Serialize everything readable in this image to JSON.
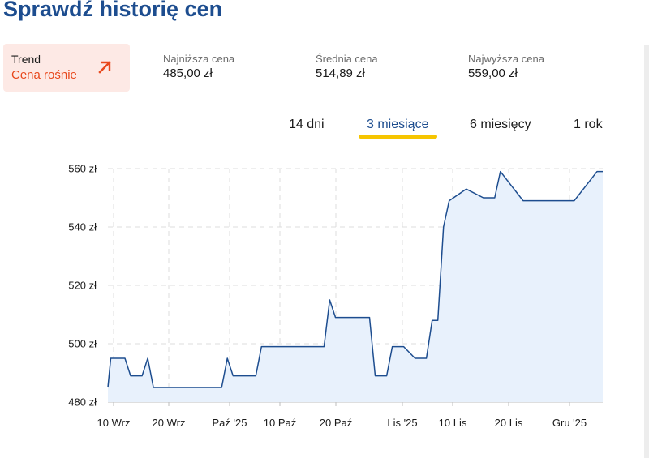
{
  "page": {
    "title": "Sprawdź historię cen"
  },
  "trend": {
    "label": "Trend",
    "value": "Cena rośnie",
    "icon": "arrow-up-right-icon",
    "accent": "#e8481c"
  },
  "stats": [
    {
      "label": "Najniższa cena",
      "value": "485,00 zł"
    },
    {
      "label": "Średnia cena",
      "value": "514,89 zł"
    },
    {
      "label": "Najwyższa cena",
      "value": "559,00 zł"
    }
  ],
  "tabs": [
    {
      "label": "14 dni",
      "active": false
    },
    {
      "label": "3 miesiące",
      "active": true
    },
    {
      "label": "6 miesięcy",
      "active": false
    },
    {
      "label": "1 rok",
      "active": false
    }
  ],
  "colors": {
    "line": "#1d4d8f",
    "area": "#e8f1fc",
    "tab_indicator": "#f6c500",
    "title": "#1d4d8f"
  },
  "chart_data": {
    "type": "area",
    "ylim": [
      480,
      560
    ],
    "y_ticks": [
      560,
      540,
      520,
      500,
      480
    ],
    "y_tick_labels": [
      "560 zł",
      "540 zł",
      "520 zł",
      "500 zł",
      "480 zł"
    ],
    "x_tick_labels": [
      "10 Wrz",
      "20 Wrz",
      "Paź '25",
      "10 Paź",
      "20 Paź",
      "Lis '25",
      "10 Lis",
      "20 Lis",
      "Gru '25"
    ],
    "grid": true,
    "series": [
      {
        "x": [
          0,
          0.5,
          1,
          3,
          4,
          6,
          7,
          8,
          9,
          20,
          21,
          22,
          26,
          27,
          38,
          39,
          40,
          46,
          47,
          49,
          50,
          52,
          54,
          55,
          56,
          57,
          58,
          59,
          60,
          63,
          66,
          67,
          68,
          69,
          73,
          74,
          80,
          82,
          86,
          87
        ],
        "y": [
          485,
          495,
          495,
          495,
          489,
          489,
          495,
          485,
          485,
          485,
          495,
          489,
          489,
          499,
          499,
          515,
          509,
          509,
          489,
          489,
          499,
          499,
          495,
          495,
          495,
          508,
          508,
          540,
          549,
          553,
          550,
          550,
          550,
          559,
          549,
          549,
          549,
          549,
          559,
          559
        ]
      }
    ]
  }
}
